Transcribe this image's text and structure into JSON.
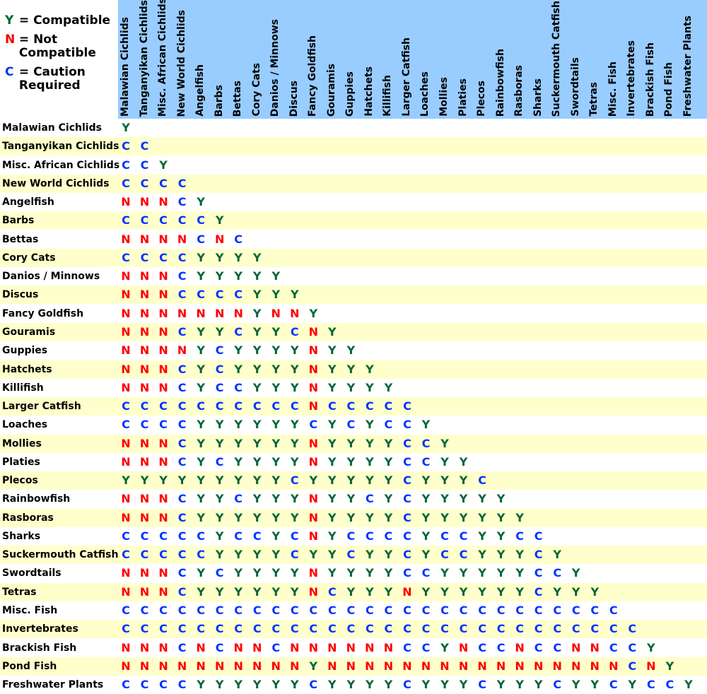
{
  "legend": [
    {
      "key": "Y",
      "text": "= Compatible",
      "color": "#006633"
    },
    {
      "key": "N",
      "text": "= Not Compatible",
      "color": "#ff0000"
    },
    {
      "key": "C",
      "text": "= Caution Required",
      "color": "#0033ff"
    }
  ],
  "colors": {
    "Y": "#006633",
    "N": "#ff0000",
    "C": "#0033ff",
    "header_bg": "#99ccff",
    "alt_row_bg": "#ffffcc"
  },
  "columns": [
    "Malawian Cichlids",
    "Tanganyikan Cichlids",
    "Misc. African Cichlids",
    "New World Cichlids",
    "Angelfish",
    "Barbs",
    "Bettas",
    "Cory Cats",
    "Danios / Minnows",
    "Discus",
    "Fancy Goldfish",
    "Gouramis",
    "Guppies",
    "Hatchets",
    "Killifish",
    "Larger Catfish",
    "Loaches",
    "Mollies",
    "Platies",
    "Plecos",
    "Rainbowfish",
    "Rasboras",
    "Sharks",
    "Suckermouth Catfish",
    "Swordtails",
    "Tetras",
    "Misc. Fish",
    "Invertebrates",
    "Brackish Fish",
    "Pond Fish",
    "Freshwater Plants"
  ],
  "rows": [
    {
      "label": "Malawian Cichlids",
      "values": [
        "Y"
      ]
    },
    {
      "label": "Tanganyikan Cichlids",
      "values": [
        "C",
        "C"
      ]
    },
    {
      "label": "Misc. African Cichlids",
      "values": [
        "C",
        "C",
        "Y"
      ]
    },
    {
      "label": "New World Cichlids",
      "values": [
        "C",
        "C",
        "C",
        "C"
      ]
    },
    {
      "label": "Angelfish",
      "values": [
        "N",
        "N",
        "N",
        "C",
        "Y"
      ]
    },
    {
      "label": "Barbs",
      "values": [
        "C",
        "C",
        "C",
        "C",
        "C",
        "Y"
      ]
    },
    {
      "label": "Bettas",
      "values": [
        "N",
        "N",
        "N",
        "N",
        "C",
        "N",
        "C"
      ]
    },
    {
      "label": "Cory Cats",
      "values": [
        "C",
        "C",
        "C",
        "C",
        "Y",
        "Y",
        "Y",
        "Y"
      ]
    },
    {
      "label": "Danios / Minnows",
      "values": [
        "N",
        "N",
        "N",
        "C",
        "Y",
        "Y",
        "Y",
        "Y",
        "Y"
      ]
    },
    {
      "label": "Discus",
      "values": [
        "N",
        "N",
        "N",
        "C",
        "C",
        "C",
        "C",
        "Y",
        "Y",
        "Y"
      ]
    },
    {
      "label": "Fancy Goldfish",
      "values": [
        "N",
        "N",
        "N",
        "N",
        "N",
        "N",
        "N",
        "Y",
        "N",
        "N",
        "Y"
      ]
    },
    {
      "label": "Gouramis",
      "values": [
        "N",
        "N",
        "N",
        "C",
        "Y",
        "Y",
        "C",
        "Y",
        "Y",
        "C",
        "N",
        "Y"
      ]
    },
    {
      "label": "Guppies",
      "values": [
        "N",
        "N",
        "N",
        "N",
        "Y",
        "C",
        "Y",
        "Y",
        "Y",
        "Y",
        "N",
        "Y",
        "Y"
      ]
    },
    {
      "label": "Hatchets",
      "values": [
        "N",
        "N",
        "N",
        "C",
        "Y",
        "C",
        "Y",
        "Y",
        "Y",
        "Y",
        "N",
        "Y",
        "Y",
        "Y"
      ]
    },
    {
      "label": "Killifish",
      "values": [
        "N",
        "N",
        "N",
        "C",
        "Y",
        "C",
        "C",
        "Y",
        "Y",
        "Y",
        "N",
        "Y",
        "Y",
        "Y",
        "Y"
      ]
    },
    {
      "label": "Larger Catfish",
      "values": [
        "C",
        "C",
        "C",
        "C",
        "C",
        "C",
        "C",
        "C",
        "C",
        "C",
        "N",
        "C",
        "C",
        "C",
        "C",
        "C"
      ]
    },
    {
      "label": "Loaches",
      "values": [
        "C",
        "C",
        "C",
        "C",
        "Y",
        "Y",
        "Y",
        "Y",
        "Y",
        "Y",
        "C",
        "Y",
        "C",
        "Y",
        "C",
        "C",
        "Y"
      ]
    },
    {
      "label": "Mollies",
      "values": [
        "N",
        "N",
        "N",
        "C",
        "Y",
        "Y",
        "Y",
        "Y",
        "Y",
        "Y",
        "N",
        "Y",
        "Y",
        "Y",
        "Y",
        "C",
        "C",
        "Y"
      ]
    },
    {
      "label": "Platies",
      "values": [
        "N",
        "N",
        "N",
        "C",
        "Y",
        "C",
        "Y",
        "Y",
        "Y",
        "Y",
        "N",
        "Y",
        "Y",
        "Y",
        "Y",
        "C",
        "C",
        "Y",
        "Y"
      ]
    },
    {
      "label": "Plecos",
      "values": [
        "Y",
        "Y",
        "Y",
        "Y",
        "Y",
        "Y",
        "Y",
        "Y",
        "Y",
        "C",
        "Y",
        "Y",
        "Y",
        "Y",
        "Y",
        "C",
        "Y",
        "Y",
        "Y",
        "C"
      ]
    },
    {
      "label": "Rainbowfish",
      "values": [
        "N",
        "N",
        "N",
        "C",
        "Y",
        "Y",
        "C",
        "Y",
        "Y",
        "Y",
        "N",
        "Y",
        "Y",
        "C",
        "Y",
        "C",
        "Y",
        "Y",
        "Y",
        "Y",
        "Y"
      ]
    },
    {
      "label": "Rasboras",
      "values": [
        "N",
        "N",
        "N",
        "C",
        "Y",
        "Y",
        "Y",
        "Y",
        "Y",
        "Y",
        "N",
        "Y",
        "Y",
        "Y",
        "Y",
        "C",
        "Y",
        "Y",
        "Y",
        "Y",
        "Y",
        "Y"
      ]
    },
    {
      "label": "Sharks",
      "values": [
        "C",
        "C",
        "C",
        "C",
        "C",
        "Y",
        "C",
        "C",
        "Y",
        "C",
        "N",
        "Y",
        "C",
        "C",
        "C",
        "C",
        "Y",
        "C",
        "C",
        "Y",
        "Y",
        "C",
        "C"
      ]
    },
    {
      "label": "Suckermouth Catfish",
      "values": [
        "C",
        "C",
        "C",
        "C",
        "C",
        "Y",
        "Y",
        "Y",
        "Y",
        "C",
        "Y",
        "Y",
        "C",
        "Y",
        "Y",
        "C",
        "Y",
        "C",
        "C",
        "Y",
        "Y",
        "Y",
        "C",
        "Y"
      ]
    },
    {
      "label": "Swordtails",
      "values": [
        "N",
        "N",
        "N",
        "C",
        "Y",
        "C",
        "Y",
        "Y",
        "Y",
        "Y",
        "N",
        "Y",
        "Y",
        "Y",
        "Y",
        "C",
        "C",
        "Y",
        "Y",
        "Y",
        "Y",
        "Y",
        "C",
        "C",
        "Y"
      ]
    },
    {
      "label": "Tetras",
      "values": [
        "N",
        "N",
        "N",
        "C",
        "Y",
        "Y",
        "Y",
        "Y",
        "Y",
        "Y",
        "N",
        "C",
        "Y",
        "Y",
        "Y",
        "N",
        "Y",
        "Y",
        "Y",
        "Y",
        "Y",
        "Y",
        "C",
        "Y",
        "Y",
        "Y"
      ]
    },
    {
      "label": "Misc. Fish",
      "values": [
        "C",
        "C",
        "C",
        "C",
        "C",
        "C",
        "C",
        "C",
        "C",
        "C",
        "C",
        "C",
        "C",
        "C",
        "C",
        "C",
        "C",
        "C",
        "C",
        "C",
        "C",
        "C",
        "C",
        "C",
        "C",
        "C",
        "C"
      ]
    },
    {
      "label": "Invertebrates",
      "values": [
        "C",
        "C",
        "C",
        "C",
        "C",
        "C",
        "C",
        "C",
        "C",
        "C",
        "C",
        "C",
        "C",
        "C",
        "C",
        "C",
        "C",
        "C",
        "C",
        "C",
        "C",
        "C",
        "C",
        "C",
        "C",
        "C",
        "C",
        "C"
      ]
    },
    {
      "label": "Brackish Fish",
      "values": [
        "N",
        "N",
        "N",
        "C",
        "N",
        "C",
        "N",
        "N",
        "C",
        "N",
        "N",
        "N",
        "N",
        "N",
        "N",
        "C",
        "C",
        "Y",
        "N",
        "C",
        "C",
        "N",
        "C",
        "C",
        "N",
        "N",
        "C",
        "C",
        "Y"
      ]
    },
    {
      "label": "Pond Fish",
      "values": [
        "N",
        "N",
        "N",
        "N",
        "N",
        "N",
        "N",
        "N",
        "N",
        "N",
        "Y",
        "N",
        "N",
        "N",
        "N",
        "N",
        "N",
        "N",
        "N",
        "N",
        "N",
        "N",
        "N",
        "N",
        "N",
        "N",
        "N",
        "C",
        "N",
        "Y"
      ]
    },
    {
      "label": "Freshwater Plants",
      "values": [
        "C",
        "C",
        "C",
        "C",
        "Y",
        "Y",
        "Y",
        "Y",
        "Y",
        "Y",
        "C",
        "Y",
        "Y",
        "Y",
        "Y",
        "C",
        "Y",
        "Y",
        "Y",
        "C",
        "Y",
        "Y",
        "Y",
        "C",
        "Y",
        "Y",
        "C",
        "Y",
        "C",
        "C",
        "Y"
      ]
    }
  ]
}
